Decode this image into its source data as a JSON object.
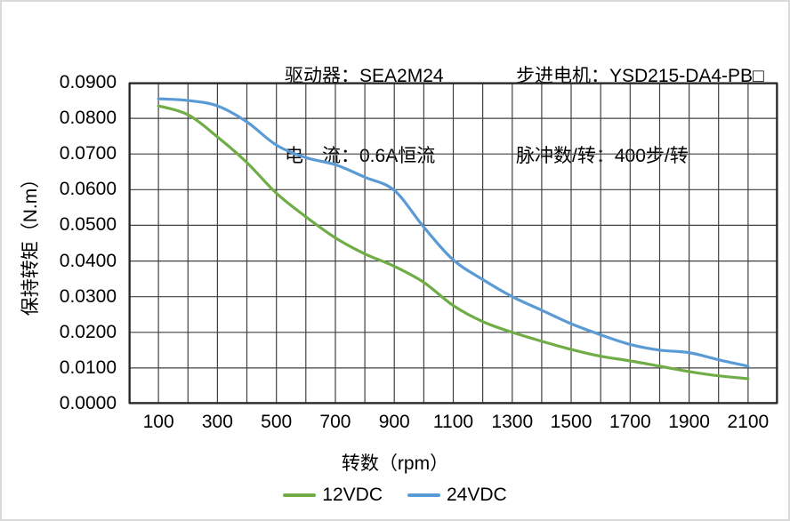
{
  "header": {
    "driver": "驱动器：SEA2M24",
    "current": "电　流：0.6A恒流",
    "motor": "步进电机：YSD215-DA4-PB□",
    "pulses": "脉冲数/转：400步/转"
  },
  "chart_data": {
    "type": "line",
    "title": "",
    "xlabel": "转数（rpm）",
    "ylabel": "保持转矩（N.m）",
    "xlim": [
      0,
      2200
    ],
    "ylim": [
      0,
      0.09
    ],
    "x_grid_step": 100,
    "y_grid_step": 0.01,
    "grid": true,
    "legend_position": "bottom",
    "x_ticks": [
      "100",
      "300",
      "500",
      "700",
      "900",
      "1100",
      "1300",
      "1500",
      "1700",
      "1900",
      "2100"
    ],
    "y_ticks": [
      "0.0900",
      "0.0800",
      "0.0700",
      "0.0600",
      "0.0500",
      "0.0400",
      "0.0300",
      "0.0200",
      "0.0100",
      "0.0000"
    ],
    "x": [
      100,
      200,
      300,
      400,
      500,
      600,
      700,
      800,
      900,
      1000,
      1100,
      1200,
      1300,
      1400,
      1500,
      1600,
      1700,
      1800,
      1900,
      2000,
      2100
    ],
    "series": [
      {
        "name": "12VDC",
        "color": "#70AD47",
        "values": [
          0.0835,
          0.081,
          0.0748,
          0.0676,
          0.059,
          0.0524,
          0.0465,
          0.042,
          0.0385,
          0.034,
          0.0275,
          0.023,
          0.02,
          0.0175,
          0.0152,
          0.0133,
          0.012,
          0.0105,
          0.009,
          0.0078,
          0.007
        ]
      },
      {
        "name": "24VDC",
        "color": "#5B9BD5",
        "values": [
          0.0855,
          0.085,
          0.0835,
          0.079,
          0.0725,
          0.069,
          0.067,
          0.0635,
          0.0598,
          0.0495,
          0.0403,
          0.0348,
          0.03,
          0.0262,
          0.0224,
          0.0193,
          0.0166,
          0.015,
          0.0143,
          0.0123,
          0.0105
        ]
      }
    ],
    "colors": {
      "grid": "#404040",
      "frame": "#262626",
      "text": "#000000",
      "outer_border": "#d9d9d9"
    }
  }
}
